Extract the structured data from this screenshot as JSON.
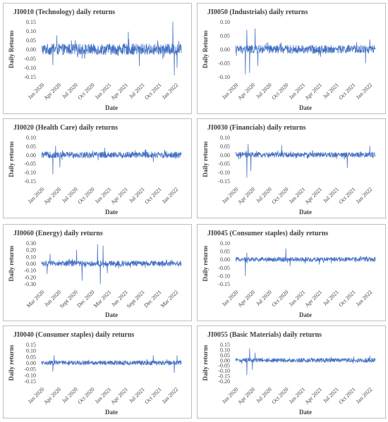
{
  "chart_data": [
    {
      "type": "line",
      "title": "JI0010 (Technology) daily returns",
      "xlabel": "Date",
      "ylabel": "Daily Returns",
      "ylim": [
        -0.15,
        0.15
      ],
      "yticks": [
        "0.15",
        "0.10",
        "0.05",
        "0.00",
        "-0.05",
        "-0.10",
        "-0.15"
      ],
      "xticks": [
        "Jan 2020",
        "Apr 2020",
        "Jul 2020",
        "Oct 2020",
        "Jan 2021",
        "Apr 2021",
        "Jul 2021",
        "Oct 2021",
        "Jan 2022"
      ],
      "series": [
        {
          "color": "#4472c4",
          "amplitude": 0.03,
          "spikes": [
            [
              0.08,
              -0.085
            ],
            [
              0.11,
              0.075
            ],
            [
              0.62,
              0.095
            ],
            [
              0.7,
              -0.09
            ],
            [
              0.94,
              0.15
            ],
            [
              0.95,
              -0.14
            ],
            [
              0.97,
              -0.1
            ]
          ]
        }
      ],
      "grid": false
    },
    {
      "type": "line",
      "title": "JI0050 (Industrials) daily returns",
      "xlabel": "Date",
      "ylabel": "Daily Returns",
      "ylim": [
        -0.1,
        0.1
      ],
      "yticks": [
        "0.10",
        "0.05",
        "0.00",
        "-0.05",
        "-0.10"
      ],
      "xticks": [
        "Jan 2020",
        "Apr 2020",
        "Jul 2020",
        "Oct 2020",
        "Jan 2021",
        "Apr 2021",
        "Jul 2021",
        "Oct 2021",
        "Jan 2022"
      ],
      "series": [
        {
          "color": "#4472c4",
          "amplitude": 0.015,
          "spikes": [
            [
              0.07,
              -0.09
            ],
            [
              0.08,
              0.07
            ],
            [
              0.1,
              -0.085
            ],
            [
              0.14,
              0.075
            ],
            [
              0.16,
              -0.06
            ],
            [
              0.93,
              -0.05
            ],
            [
              0.96,
              0.035
            ]
          ]
        }
      ],
      "grid": false
    },
    {
      "type": "line",
      "title": "JI0020 (Health Care) daily returns",
      "xlabel": "Date",
      "ylabel": "Daily returns",
      "ylim": [
        -0.15,
        0.1
      ],
      "yticks": [
        "0.10",
        "0.05",
        "0.00",
        "-0.05",
        "-0.10",
        "-0.15"
      ],
      "xticks": [
        "Jan 2020",
        "Apr 2020",
        "Jul 2020",
        "Oct 2020",
        "Jan 2021",
        "Apr 2021",
        "Jul 2021",
        "Oct 2021",
        "Jan 2022"
      ],
      "series": [
        {
          "color": "#4472c4",
          "amplitude": 0.018,
          "spikes": [
            [
              0.08,
              -0.11
            ],
            [
              0.1,
              0.05
            ],
            [
              0.13,
              -0.07
            ],
            [
              0.45,
              0.04
            ],
            [
              0.8,
              -0.04
            ]
          ]
        }
      ],
      "grid": false
    },
    {
      "type": "line",
      "title": "JI0030 (Financials) daily returns",
      "xlabel": "Date",
      "ylabel": "Daily returns",
      "ylim": [
        -0.15,
        0.1
      ],
      "yticks": [
        "0.10",
        "0.05",
        "0.00",
        "-0.05",
        "-0.10",
        "-0.15"
      ],
      "xticks": [
        "Jan 2020",
        "Apr 2020",
        "Jul 2020",
        "Oct 2020",
        "Jan 2021",
        "Apr 2021",
        "Jul 2021",
        "Oct 2021",
        "Jan 2022"
      ],
      "series": [
        {
          "color": "#4472c4",
          "amplitude": 0.015,
          "spikes": [
            [
              0.08,
              -0.13
            ],
            [
              0.09,
              0.06
            ],
            [
              0.11,
              -0.09
            ],
            [
              0.33,
              0.055
            ],
            [
              0.8,
              -0.075
            ],
            [
              0.96,
              0.05
            ]
          ]
        }
      ],
      "grid": false
    },
    {
      "type": "line",
      "title": "JI0060 (Energy) daily returns",
      "xlabel": "Date",
      "ylabel": "Daily returns",
      "ylim": [
        -0.3,
        0.3
      ],
      "yticks": [
        "0.30",
        "0.20",
        "0.10",
        "0.00",
        "-0.10",
        "-0.20",
        "-0.30"
      ],
      "xticks": [
        "Mar 2020",
        "Jun 2020",
        "Sept 2020",
        "Dec 2020",
        "Mar 2021",
        "Jun 2021",
        "Sept 2021",
        "Dec 2021",
        "Mar 2022"
      ],
      "series": [
        {
          "color": "#4472c4",
          "amplitude": 0.04,
          "spikes": [
            [
              0.04,
              -0.15
            ],
            [
              0.06,
              0.14
            ],
            [
              0.25,
              0.2
            ],
            [
              0.29,
              -0.25
            ],
            [
              0.4,
              0.28
            ],
            [
              0.42,
              -0.3
            ],
            [
              0.44,
              0.26
            ],
            [
              0.47,
              -0.14
            ]
          ]
        }
      ],
      "grid": false
    },
    {
      "type": "line",
      "title": "JI0045 (Consumer staples) daily returns",
      "xlabel": "Date",
      "ylabel": "Daily returns",
      "ylim": [
        -0.15,
        0.1
      ],
      "yticks": [
        "0.10",
        "0.05",
        "0.00",
        "-0.05",
        "-0.10",
        "-0.15"
      ],
      "xticks": [
        "Jan 2020",
        "Apr 2020",
        "Jul 2020",
        "Oct 2020",
        "Jan 2021",
        "Apr 2021",
        "Jul 2021",
        "Oct 2021",
        "Jan 2022"
      ],
      "series": [
        {
          "color": "#4472c4",
          "amplitude": 0.014,
          "spikes": [
            [
              0.07,
              -0.1
            ],
            [
              0.08,
              0.04
            ],
            [
              0.36,
              0.065
            ],
            [
              0.39,
              -0.04
            ],
            [
              0.6,
              -0.03
            ]
          ]
        }
      ],
      "grid": false
    },
    {
      "type": "line",
      "title": "JI0040 (Consumer staples) daily returns",
      "xlabel": "Date",
      "ylabel": "Daily returns",
      "ylim": [
        -0.15,
        0.15
      ],
      "yticks": [
        "0.15",
        "0.10",
        "0.05",
        "0.00",
        "-0.05",
        "-0.10",
        "-0.15"
      ],
      "xticks": [
        "Jan 2020",
        "Apr 2020",
        "Jul 2020",
        "Oct 2020",
        "Jan 2021",
        "Apr 2021",
        "Jul 2021",
        "Oct 2021",
        "Jan 2022"
      ],
      "series": [
        {
          "color": "#4472c4",
          "amplitude": 0.018,
          "spikes": [
            [
              0.08,
              -0.07
            ],
            [
              0.09,
              0.06
            ],
            [
              0.8,
              0.06
            ],
            [
              0.95,
              -0.08
            ],
            [
              0.97,
              0.06
            ]
          ]
        }
      ],
      "grid": false
    },
    {
      "type": "line",
      "title": "JI0055 (Basic Materials) daily returns",
      "xlabel": "Date",
      "ylabel": "Daily returns",
      "ylim": [
        -0.2,
        0.15
      ],
      "yticks": [
        "0.15",
        "0.10",
        "0.05",
        "0.00",
        "-0.05",
        "-0.10",
        "-0.15",
        "-0.20"
      ],
      "xticks": [
        "Jan 2020",
        "Apr 2020",
        "Jul 2020",
        "Oct 2020",
        "Jan 2021",
        "Apr 2021",
        "Jul 2021",
        "Oct 2021",
        "Jan 2022"
      ],
      "series": [
        {
          "color": "#4472c4",
          "amplitude": 0.02,
          "spikes": [
            [
              0.08,
              -0.14
            ],
            [
              0.1,
              0.11
            ],
            [
              0.12,
              -0.09
            ],
            [
              0.14,
              0.07
            ],
            [
              0.96,
              0.04
            ]
          ]
        }
      ],
      "grid": false
    }
  ]
}
